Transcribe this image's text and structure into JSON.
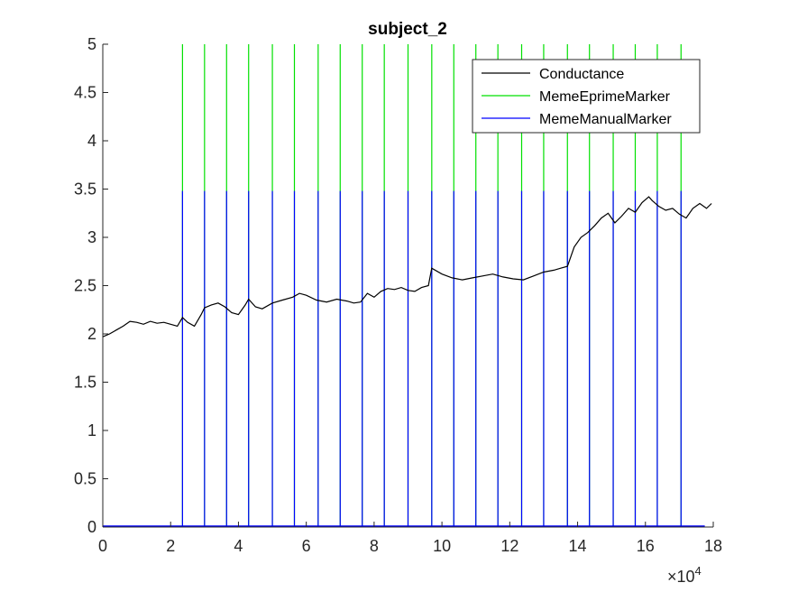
{
  "chart_data": {
    "type": "line",
    "title": "subject_2",
    "xlabel": "",
    "ylabel": "",
    "x_exponent_label": "×10",
    "x_exponent_power": "4",
    "xlim": [
      0,
      180000
    ],
    "ylim": [
      0,
      5
    ],
    "xticks": [
      0,
      20000,
      40000,
      60000,
      80000,
      100000,
      120000,
      140000,
      160000,
      180000
    ],
    "xtick_labels": [
      "0",
      "2",
      "4",
      "6",
      "8",
      "10",
      "12",
      "14",
      "16",
      "18"
    ],
    "yticks": [
      0,
      0.5,
      1,
      1.5,
      2,
      2.5,
      3,
      3.5,
      4,
      4.5,
      5
    ],
    "ytick_labels": [
      "0",
      "0.5",
      "1",
      "1.5",
      "2",
      "2.5",
      "3",
      "3.5",
      "4",
      "4.5",
      "5"
    ],
    "grid": false,
    "legend_position": "top-right",
    "series": [
      {
        "name": "Conductance",
        "color": "#000000",
        "kind": "line",
        "x": [
          0,
          2000,
          4000,
          6000,
          8000,
          10000,
          12000,
          14000,
          16000,
          18000,
          20000,
          22000,
          23500,
          25000,
          27000,
          29000,
          30000,
          32000,
          34000,
          36000,
          38000,
          40000,
          42000,
          43000,
          45000,
          47000,
          50000,
          53000,
          56000,
          58000,
          60000,
          63000,
          66000,
          69000,
          72000,
          74000,
          76000,
          78000,
          80000,
          82000,
          84000,
          86000,
          88000,
          90000,
          92000,
          94000,
          96000,
          97000,
          100000,
          103000,
          106000,
          109000,
          112000,
          115000,
          118000,
          121000,
          124000,
          127000,
          130000,
          133000,
          135000,
          137000,
          139000,
          141000,
          143000,
          145000,
          147000,
          149000,
          151000,
          153000,
          155000,
          157000,
          159000,
          161000,
          162000,
          164000,
          166000,
          168000,
          170000,
          172000,
          174000,
          176000,
          178000,
          179500
        ],
        "y": [
          1.97,
          2.0,
          2.04,
          2.08,
          2.13,
          2.12,
          2.1,
          2.13,
          2.11,
          2.12,
          2.1,
          2.08,
          2.17,
          2.12,
          2.08,
          2.2,
          2.27,
          2.3,
          2.32,
          2.28,
          2.22,
          2.2,
          2.3,
          2.36,
          2.28,
          2.26,
          2.32,
          2.35,
          2.38,
          2.42,
          2.4,
          2.35,
          2.33,
          2.36,
          2.34,
          2.32,
          2.33,
          2.42,
          2.38,
          2.44,
          2.47,
          2.46,
          2.48,
          2.45,
          2.44,
          2.48,
          2.5,
          2.68,
          2.62,
          2.58,
          2.56,
          2.58,
          2.6,
          2.62,
          2.59,
          2.57,
          2.56,
          2.6,
          2.64,
          2.66,
          2.68,
          2.7,
          2.9,
          3.0,
          3.05,
          3.12,
          3.2,
          3.25,
          3.15,
          3.22,
          3.3,
          3.26,
          3.36,
          3.42,
          3.38,
          3.32,
          3.28,
          3.3,
          3.24,
          3.2,
          3.3,
          3.35,
          3.3,
          3.35
        ]
      },
      {
        "name": "MemeEprimeMarker",
        "color": "#00e000",
        "kind": "stem",
        "x": [
          23500,
          30000,
          36500,
          43000,
          50000,
          56500,
          63500,
          70000,
          76500,
          83000,
          90000,
          97000,
          103500,
          110000,
          116500,
          123500,
          130000,
          137000,
          143500,
          150500,
          157000,
          163500,
          170500
        ],
        "y": 5
      },
      {
        "name": "MemeManualMarker",
        "color": "#0000ff",
        "kind": "stem",
        "x": [
          23500,
          30000,
          36500,
          43000,
          50000,
          56500,
          63500,
          70000,
          76500,
          83000,
          90000,
          97000,
          103500,
          110000,
          116500,
          123500,
          130000,
          137000,
          143500,
          150500,
          157000,
          163500,
          170500
        ],
        "y": 3.48
      }
    ]
  }
}
